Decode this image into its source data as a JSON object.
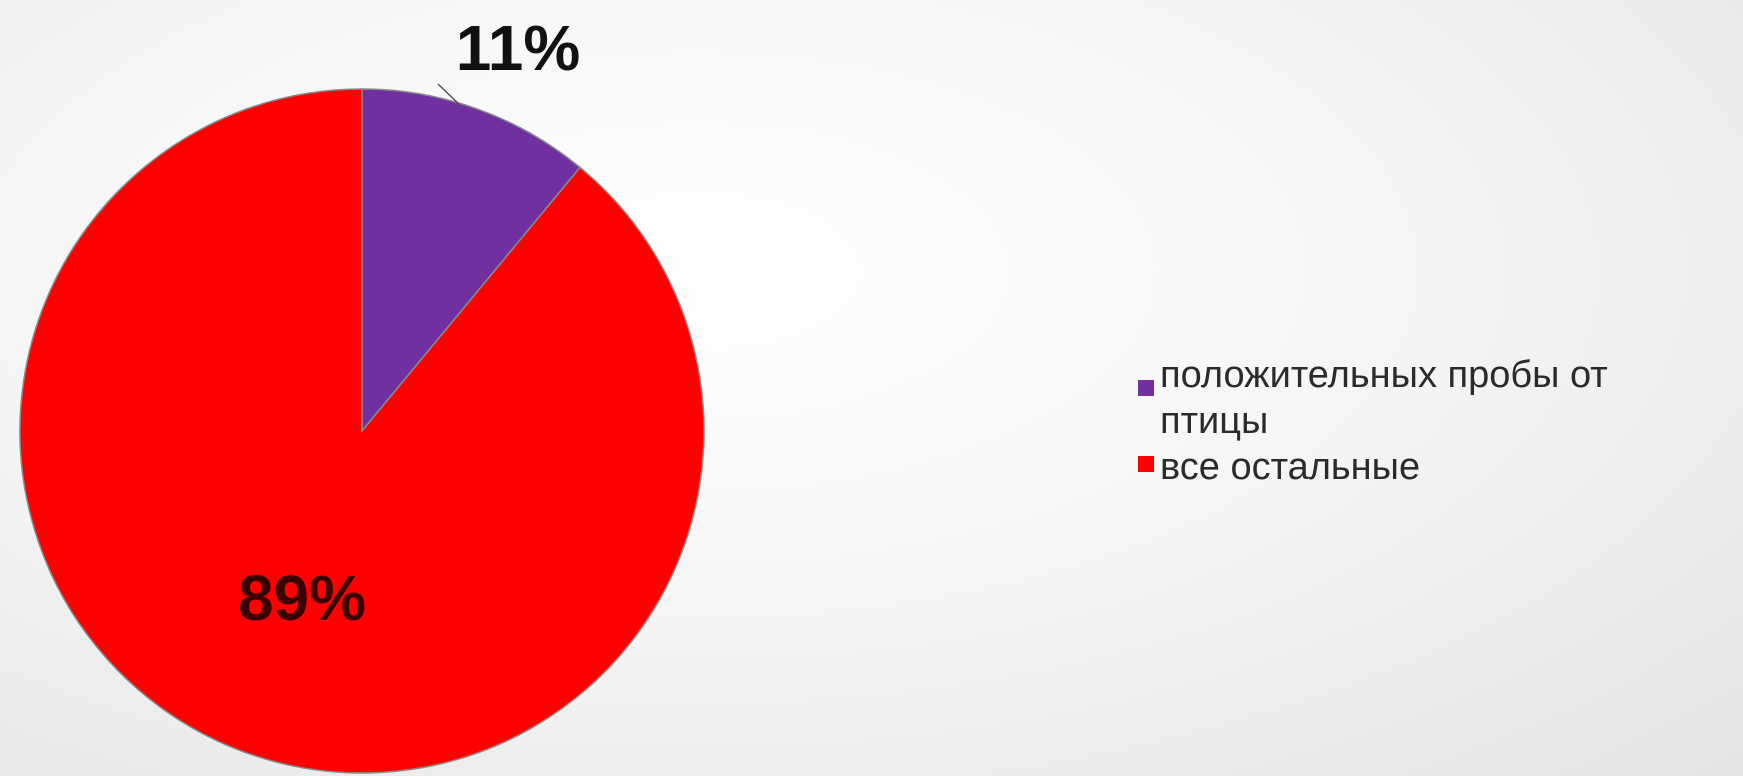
{
  "chart_data": {
    "type": "pie",
    "start_angle_deg": 0,
    "direction": "clockwise",
    "slices": [
      {
        "label": "положительных пробы от птицы",
        "value": 11,
        "display": "11%",
        "color": "#7030a0"
      },
      {
        "label": "все остальные",
        "value": 89,
        "display": "89%",
        "color": "#ff0000"
      }
    ],
    "legend": {
      "position": "right",
      "entries": [
        "положительных пробы от птицы",
        "все остальные"
      ]
    },
    "label_colors": [
      "#111111",
      "#3a0000"
    ],
    "title": ""
  }
}
